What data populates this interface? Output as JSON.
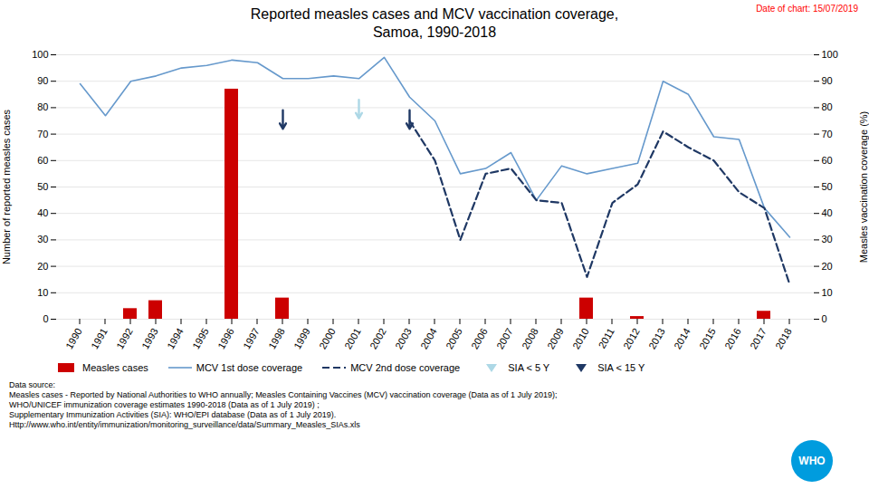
{
  "chart_data": {
    "type": "bar",
    "title": "Reported measles cases and MCV vaccination coverage,",
    "subtitle": "Samoa, 1990-2018",
    "annotations": [
      {
        "text": "Date of chart: 15/07/2019",
        "color": "red"
      }
    ],
    "caption": [
      "Data source:",
      "Measles cases - Reported by National Authorities to WHO annually; Measles Containing Vaccines (MCV) vaccination coverage (Data as of 1 July 2019);",
      "WHO/UNICEF immunization coverage estimates 1990-2018 (Data as of 1 July 2019) ;",
      "Supplementary Immunization Activities (SIA): WHO/EPI database (Data as of 1 July 2019).",
      "Http://www.who.int/entity/immunization/monitoring_surveillance/data/Summary_Measles_SIAs.xls"
    ],
    "logo": {
      "text": "WHO",
      "color": "#009cde"
    },
    "ylabel": "Number of reported measles cases",
    "y2label": "Measles vaccination coverage (%)",
    "categories": [
      1990,
      1991,
      1992,
      1993,
      1994,
      1995,
      1996,
      1997,
      1998,
      1999,
      2000,
      2001,
      2002,
      2003,
      2004,
      2005,
      2006,
      2007,
      2008,
      2009,
      2010,
      2011,
      2012,
      2013,
      2014,
      2015,
      2016,
      2017,
      2018
    ],
    "series": [
      {
        "name": "Measles cases",
        "type": "bar",
        "color": "#cc0000",
        "values": [
          0,
          0,
          4,
          7,
          0,
          0,
          87,
          0,
          8,
          0,
          0,
          0,
          0,
          0,
          0,
          0,
          0,
          0,
          0,
          0,
          8,
          0,
          1,
          0,
          0,
          0,
          0,
          3,
          0
        ]
      },
      {
        "name": "MCV 1st dose coverage",
        "type": "line",
        "color": "#6699cc",
        "axis": "y2",
        "values": [
          89,
          77,
          90,
          92,
          95,
          96,
          98,
          97,
          91,
          91,
          92,
          91,
          99,
          84,
          75,
          55,
          57,
          63,
          45,
          58,
          55,
          57,
          59,
          90,
          85,
          69,
          68,
          42,
          31
        ]
      },
      {
        "name": "MCV 2nd dose coverage",
        "type": "line",
        "color": "#1f3864",
        "line_style": "dashed",
        "axis": "y2",
        "values": [
          null,
          null,
          null,
          null,
          null,
          null,
          null,
          null,
          null,
          null,
          null,
          null,
          null,
          75,
          60,
          30,
          55,
          57,
          45,
          44,
          16,
          44,
          51,
          71,
          65,
          60,
          48,
          42,
          13
        ]
      },
      {
        "name": "SIA < 5 Y",
        "type": "arrow",
        "marker": "triangle_down",
        "color": "#add8e6",
        "axis": "y2",
        "starts": [
          null,
          null,
          null,
          null,
          null,
          null,
          null,
          null,
          null,
          null,
          null,
          83,
          null,
          null,
          null,
          null,
          null,
          null,
          null,
          null,
          null,
          null,
          null,
          null,
          null,
          null,
          null,
          null,
          null
        ],
        "values": [
          null,
          null,
          null,
          null,
          null,
          null,
          null,
          null,
          null,
          null,
          null,
          76,
          null,
          null,
          null,
          null,
          null,
          null,
          null,
          null,
          null,
          null,
          null,
          null,
          null,
          null,
          null,
          null,
          null
        ]
      },
      {
        "name": "SIA < 15 Y",
        "type": "arrow",
        "marker": "triangle_down",
        "color": "#1f3864",
        "axis": "y2",
        "starts": [
          null,
          null,
          null,
          null,
          null,
          null,
          null,
          null,
          79,
          null,
          null,
          null,
          null,
          79,
          null,
          null,
          null,
          null,
          null,
          null,
          null,
          null,
          null,
          null,
          null,
          null,
          null,
          null,
          null
        ],
        "values": [
          null,
          null,
          null,
          null,
          null,
          null,
          null,
          null,
          72,
          null,
          null,
          null,
          null,
          72,
          null,
          null,
          null,
          null,
          null,
          null,
          null,
          null,
          null,
          null,
          null,
          null,
          null,
          null,
          null
        ]
      }
    ],
    "ylim": [
      0,
      100
    ],
    "yticks": [
      0,
      10,
      20,
      30,
      40,
      50,
      60,
      70,
      80,
      90,
      100
    ],
    "y2lim": [
      0,
      100
    ],
    "y2ticks": [
      0,
      10,
      20,
      30,
      40,
      50,
      60,
      70,
      80,
      90,
      100
    ],
    "grid": true,
    "legend": "bottom"
  }
}
